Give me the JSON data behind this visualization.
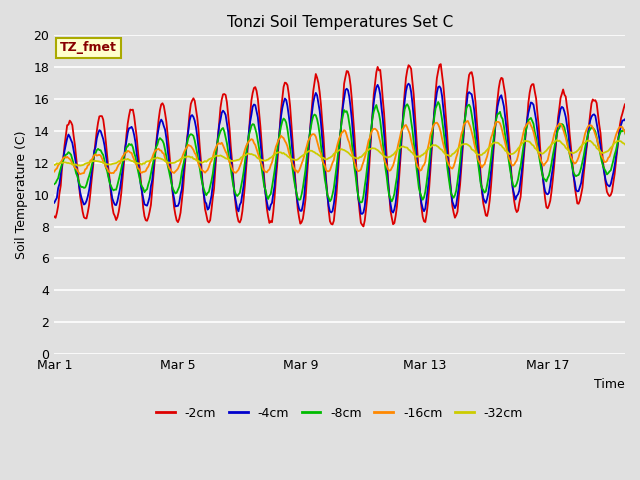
{
  "title": "Tonzi Soil Temperatures Set C",
  "xlabel": "Time",
  "ylabel": "Soil Temperature (C)",
  "ylim": [
    0,
    20
  ],
  "yticks": [
    0,
    2,
    4,
    6,
    8,
    10,
    12,
    14,
    16,
    18,
    20
  ],
  "xtick_labels": [
    "Mar 1",
    "Mar 5",
    "Mar 9",
    "Mar 13",
    "Mar 17"
  ],
  "xtick_days": [
    0,
    4,
    8,
    12,
    16
  ],
  "annotation": "TZ_fmet",
  "bg_color": "#e0e0e0",
  "plot_bg_color": "#e0e0e0",
  "series": [
    {
      "label": "-2cm",
      "color": "#dd0000"
    },
    {
      "label": "-4cm",
      "color": "#0000cc"
    },
    {
      "label": "-8cm",
      "color": "#00bb00"
    },
    {
      "label": "-16cm",
      "color": "#ff8800"
    },
    {
      "label": "-32cm",
      "color": "#cccc00"
    }
  ],
  "line_width": 1.3,
  "total_days": 18.5
}
